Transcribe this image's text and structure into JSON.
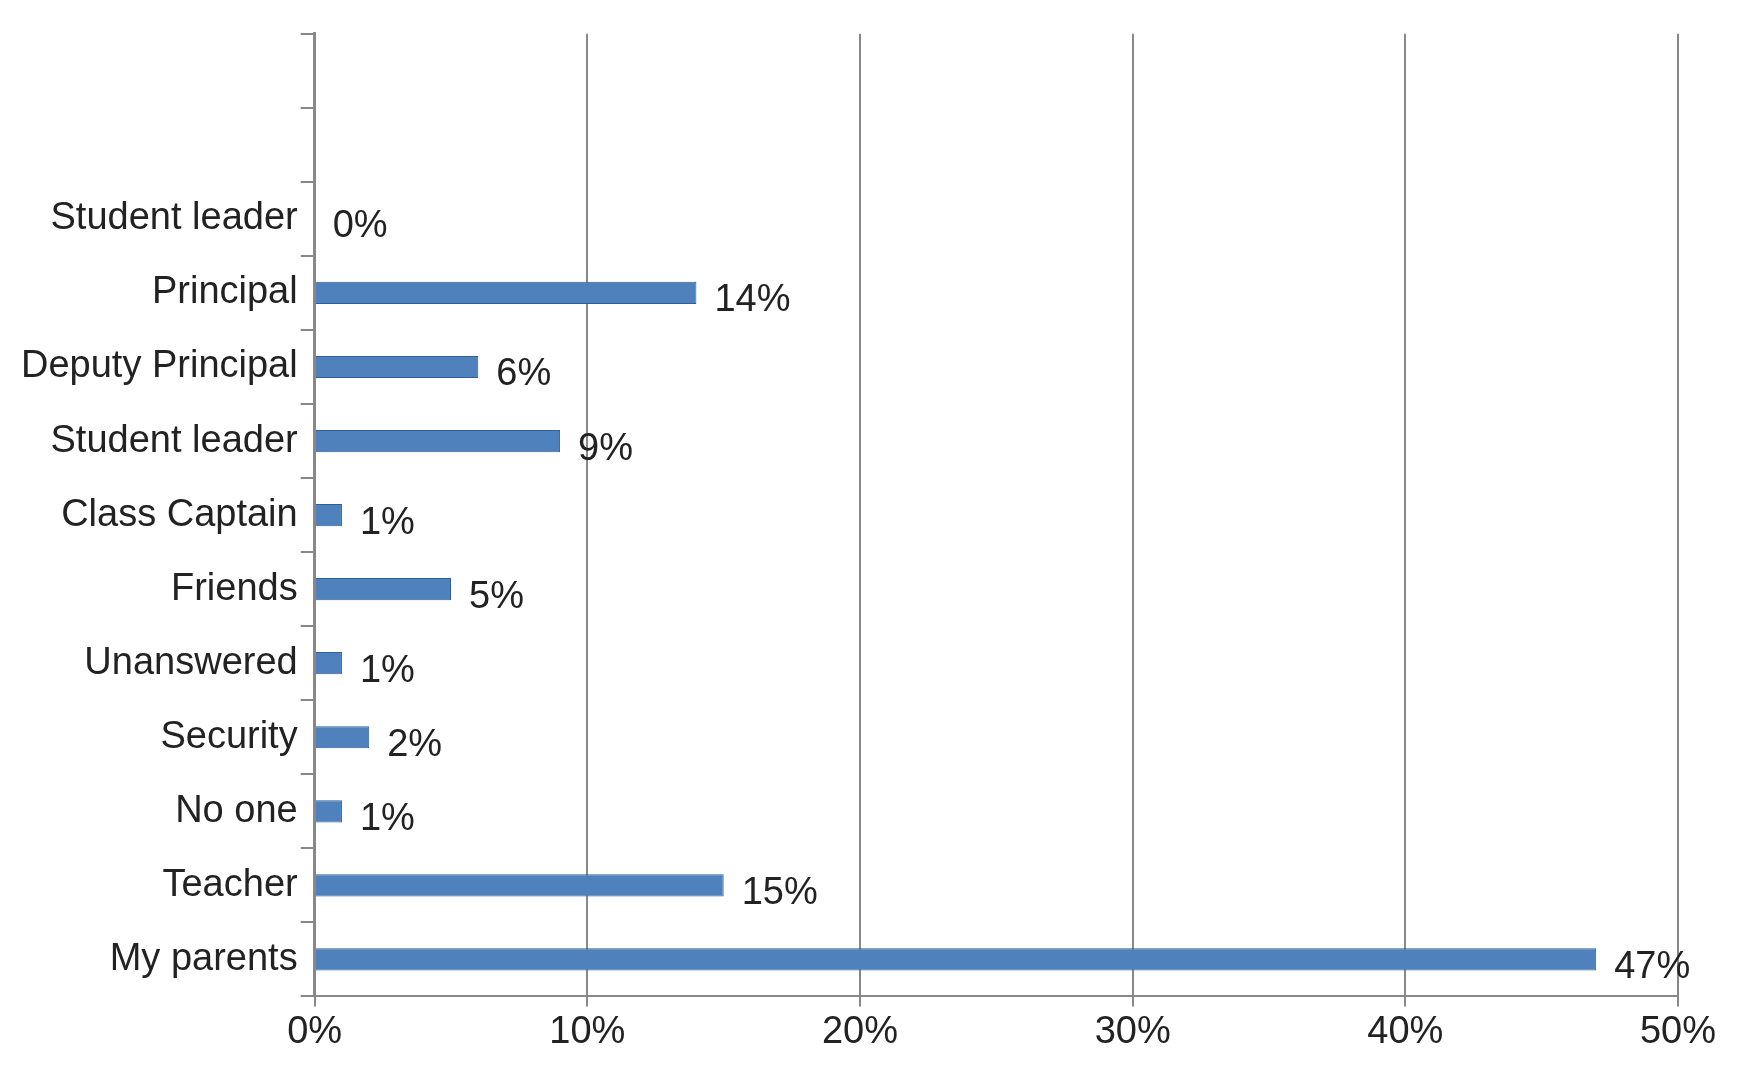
{
  "chart_data": {
    "type": "bar",
    "orientation": "horizontal",
    "categories": [
      null,
      null,
      "Student leader",
      "Principal",
      "Deputy Principal",
      "Student leader",
      "Class Captain",
      "Friends",
      "Unanswered",
      "Security",
      "No one",
      "Teacher",
      "My parents"
    ],
    "values": [
      null,
      null,
      0,
      14,
      6,
      9,
      1,
      5,
      1,
      2,
      1,
      15,
      47
    ],
    "value_labels": [
      null,
      null,
      "0%",
      "14%",
      "6%",
      "9%",
      "1%",
      "5%",
      "1%",
      "2%",
      "1%",
      "15%",
      "47%"
    ],
    "color": "#4f81bd",
    "xlim": [
      0,
      50
    ],
    "xticks": [
      {
        "value": 0,
        "label": "0%"
      },
      {
        "value": 10,
        "label": "10%"
      },
      {
        "value": 20,
        "label": "20%"
      },
      {
        "value": 30,
        "label": "30%"
      },
      {
        "value": 40,
        "label": "40%"
      },
      {
        "value": 50,
        "label": "50%"
      }
    ],
    "grid": "x"
  }
}
